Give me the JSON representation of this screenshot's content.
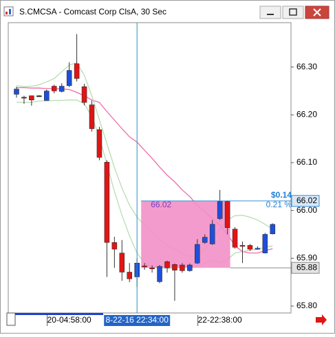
{
  "window": {
    "title": "S.CMCSA - Comcast Corp ClsA, 30 Sec"
  },
  "chart_data": {
    "type": "candlestick",
    "categories": [
      null,
      null,
      null,
      null,
      null,
      null,
      null,
      "20-04:58:00",
      null,
      null,
      null,
      null,
      null,
      null,
      null,
      null,
      "8-22-16 22:34:00",
      null,
      null,
      null,
      null,
      null,
      null,
      null,
      null,
      null,
      null,
      "22-22:38:00",
      null,
      null,
      null,
      null,
      null,
      null,
      null
    ],
    "open": [
      66.243,
      66.237,
      66.24,
      66.24,
      66.23,
      66.26,
      66.249,
      66.261,
      66.307,
      66.259,
      66.221,
      66.169,
      66.101,
      65.933,
      65.911,
      65.871,
      65.861,
      65.884,
      65.88,
      65.851,
      65.893,
      65.887,
      65.886,
      65.874,
      65.89,
      65.933,
      65.93,
      65.983,
      66.019,
      65.961,
      65.927,
      65.927,
      65.92,
      65.911,
      65.951
    ],
    "high": [
      66.259,
      66.24,
      66.24,
      66.241,
      66.253,
      66.263,
      66.266,
      66.31,
      66.369,
      66.265,
      66.23,
      66.175,
      66.105,
      65.945,
      65.938,
      65.89,
      65.9,
      65.89,
      65.885,
      65.886,
      65.895,
      65.889,
      65.89,
      65.889,
      65.94,
      65.95,
      65.98,
      66.043,
      66.021,
      65.965,
      65.935,
      65.93,
      65.925,
      65.953,
      65.973
    ],
    "low": [
      66.236,
      66.223,
      66.219,
      66.239,
      66.23,
      66.245,
      66.247,
      66.258,
      66.27,
      66.22,
      66.165,
      66.105,
      65.861,
      65.88,
      65.853,
      65.85,
      65.84,
      65.876,
      65.87,
      65.848,
      65.87,
      65.811,
      65.87,
      65.872,
      65.888,
      65.93,
      65.928,
      65.98,
      65.95,
      65.92,
      65.89,
      65.915,
      65.918,
      65.91,
      65.95
    ],
    "close": [
      66.254,
      66.236,
      66.231,
      66.24,
      66.25,
      66.25,
      66.26,
      66.293,
      66.276,
      66.226,
      66.171,
      66.111,
      65.933,
      65.919,
      65.871,
      65.857,
      65.89,
      65.882,
      65.878,
      65.883,
      65.88,
      65.875,
      65.874,
      65.886,
      65.929,
      65.944,
      65.971,
      66.019,
      65.964,
      65.923,
      65.926,
      65.919,
      65.921,
      65.95,
      65.971
    ],
    "up_color": "#1f4fd8",
    "down_color": "#e01515",
    "lines": [
      {
        "color": "#f06aa8",
        "values": [
          66.257,
          66.257,
          66.256,
          66.256,
          66.255,
          66.255,
          66.254,
          66.253,
          66.247,
          66.24,
          66.231,
          66.226,
          66.207,
          66.189,
          66.171,
          66.154,
          66.143,
          66.126,
          66.109,
          66.091,
          66.074,
          66.06,
          66.043,
          66.029,
          66.011,
          65.997,
          65.983,
          65.969,
          65.951,
          65.926,
          65.914,
          65.911,
          65.911,
          65.916,
          65.92
        ]
      },
      {
        "color": "#b9dcb4",
        "values": [
          66.261,
          66.259,
          66.26,
          66.263,
          66.269,
          66.276,
          66.29,
          66.304,
          66.309,
          66.283,
          66.24,
          66.19,
          66.14,
          66.09,
          66.047,
          66.011,
          65.986,
          65.969,
          65.954,
          65.94,
          65.926,
          65.919,
          65.909,
          65.904,
          65.904,
          65.919,
          65.94,
          65.961,
          65.98,
          65.989,
          65.99,
          65.986,
          65.98,
          65.971,
          65.961
        ]
      },
      {
        "color": "#b9dcb4",
        "values": [
          66.226,
          66.226,
          66.226,
          66.229,
          66.229,
          66.23,
          66.23,
          66.231,
          66.231,
          66.223,
          66.197,
          66.154,
          66.097,
          66.04,
          65.99,
          65.947,
          65.911,
          65.89,
          65.883,
          65.88,
          65.879,
          65.88,
          65.881,
          65.883,
          65.884,
          65.89,
          65.897,
          65.89,
          65.897,
          65.911,
          65.914,
          65.917,
          65.919,
          65.923,
          65.926
        ]
      }
    ],
    "ylim": [
      65.787,
      66.39
    ],
    "yticks": [
      {
        "value": 66.3,
        "label": "66.30"
      },
      {
        "value": 66.2,
        "label": "66.20"
      },
      {
        "value": 66.1,
        "label": "66.10"
      },
      {
        "value": 66.0,
        "label": "66.00"
      },
      {
        "value": 65.9,
        "label": "65.90"
      },
      {
        "value": 65.8,
        "label": "65.80"
      }
    ],
    "crosshair_time": "8-22-16 22:34:00",
    "measure": {
      "high": 66.02,
      "low": 65.88,
      "change_label": "$0.14",
      "percent_label": "0.21 %",
      "color": "#f290c6"
    }
  }
}
